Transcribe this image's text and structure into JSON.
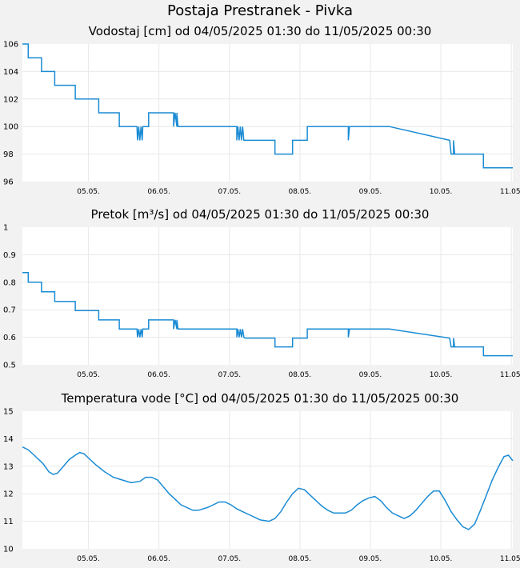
{
  "page_title": "Postaja Prestranek - Pivka",
  "colors": {
    "series": "#1a8bd4",
    "plot_bg": "#ffffff",
    "page_bg": "#f2f2f2",
    "grid": "#e8e8e8"
  },
  "chart_data": [
    {
      "type": "line",
      "title": "Vodostaj [cm] od 04/05/2025 01:30 do 11/05/2025 00:30",
      "xlabel": "",
      "ylabel": "",
      "x_range": [
        0,
        167
      ],
      "ylim": [
        96,
        106
      ],
      "yticks": [
        "96",
        "98",
        "100",
        "102",
        "104",
        "106"
      ],
      "xticks": [
        {
          "hour": 22.5,
          "label": "05.05."
        },
        {
          "hour": 46.5,
          "label": "06.05."
        },
        {
          "hour": 70.5,
          "label": "07.05."
        },
        {
          "hour": 94.5,
          "label": "08.05."
        },
        {
          "hour": 118.5,
          "label": "09.05."
        },
        {
          "hour": 142.5,
          "label": "10.05."
        },
        {
          "hour": 166.5,
          "label": "11.05."
        }
      ],
      "grid": true,
      "series": [
        {
          "x": [
            0,
            2,
            2,
            6.5,
            6.5,
            11,
            11,
            18,
            18,
            26,
            26,
            33,
            33,
            39,
            39.2,
            39.6,
            40,
            40.4,
            40.8,
            41,
            43,
            43,
            51.5,
            51.5,
            52,
            52.6,
            52.6,
            53,
            53.2,
            73,
            73,
            73.4,
            73.8,
            74.2,
            74.6,
            75,
            75.4,
            75.8,
            76.2,
            76.6,
            86,
            86,
            92,
            92,
            97,
            97,
            111,
            111,
            111.4,
            111.8,
            111.8,
            125,
            125,
            145.5,
            145.5,
            146,
            146.8,
            146.8,
            147.2,
            147.4,
            147.6,
            157,
            157,
            167
          ],
          "y": [
            106,
            106,
            105,
            105,
            104,
            104,
            103,
            103,
            102,
            102,
            101,
            101,
            100,
            100,
            99,
            100,
            99,
            100,
            99,
            100,
            100,
            101,
            101,
            100,
            101,
            100,
            101,
            100,
            100,
            100,
            99,
            100,
            99,
            100,
            99,
            100,
            99,
            99,
            99,
            99,
            99,
            98,
            98,
            99,
            99,
            100,
            100,
            99,
            100,
            100,
            100,
            100,
            100,
            99,
            99,
            98,
            98,
            99,
            98,
            98,
            98,
            98,
            97,
            97
          ]
        }
      ]
    },
    {
      "type": "line",
      "title": "Pretok [m³/s] od 04/05/2025 01:30 do 11/05/2025 00:30",
      "xlabel": "",
      "ylabel": "",
      "x_range": [
        0,
        167
      ],
      "ylim": [
        0.5,
        1
      ],
      "yticks": [
        "0.5",
        "0.6",
        "0.7",
        "0.8",
        "0.9",
        "1"
      ],
      "xticks": [
        {
          "hour": 22.5,
          "label": "05.05."
        },
        {
          "hour": 46.5,
          "label": "06.05."
        },
        {
          "hour": 70.5,
          "label": "07.05."
        },
        {
          "hour": 94.5,
          "label": "08.05."
        },
        {
          "hour": 118.5,
          "label": "09.05."
        },
        {
          "hour": 142.5,
          "label": "10.05."
        },
        {
          "hour": 166.5,
          "label": "11.05."
        }
      ],
      "grid": true,
      "series": [
        {
          "x": [
            0,
            2,
            2,
            6.5,
            6.5,
            11,
            11,
            18,
            18,
            26,
            26,
            33,
            33,
            39,
            39.2,
            39.6,
            40,
            40.4,
            40.8,
            41,
            43,
            43,
            51.5,
            51.5,
            52,
            52.6,
            52.6,
            53,
            53.2,
            73,
            73,
            73.4,
            73.8,
            74.2,
            74.6,
            75,
            75.4,
            75.8,
            76.2,
            76.6,
            86,
            86,
            92,
            92,
            97,
            97,
            111,
            111,
            111.4,
            111.8,
            111.8,
            125,
            125,
            145.5,
            145.5,
            146,
            146.8,
            146.8,
            147.2,
            147.4,
            147.6,
            157,
            157,
            167
          ],
          "y": [
            0.835,
            0.835,
            0.8,
            0.8,
            0.765,
            0.765,
            0.73,
            0.73,
            0.697,
            0.697,
            0.663,
            0.663,
            0.63,
            0.63,
            0.6,
            0.63,
            0.6,
            0.63,
            0.6,
            0.63,
            0.63,
            0.663,
            0.663,
            0.63,
            0.663,
            0.63,
            0.663,
            0.63,
            0.63,
            0.63,
            0.6,
            0.63,
            0.6,
            0.63,
            0.6,
            0.63,
            0.6,
            0.597,
            0.597,
            0.597,
            0.597,
            0.565,
            0.565,
            0.597,
            0.597,
            0.63,
            0.63,
            0.6,
            0.63,
            0.63,
            0.63,
            0.63,
            0.63,
            0.597,
            0.597,
            0.565,
            0.565,
            0.597,
            0.565,
            0.565,
            0.565,
            0.565,
            0.533,
            0.533
          ]
        }
      ]
    },
    {
      "type": "line",
      "title": "Temperatura vode [°C] od 04/05/2025 01:30 do 11/05/2025 00:30",
      "xlabel": "",
      "ylabel": "",
      "x_range": [
        0,
        167
      ],
      "ylim": [
        10,
        15
      ],
      "yticks": [
        "10",
        "11",
        "12",
        "13",
        "14",
        "15"
      ],
      "xticks": [
        {
          "hour": 22.5,
          "label": "05.05."
        },
        {
          "hour": 46.5,
          "label": "06.05."
        },
        {
          "hour": 70.5,
          "label": "07.05."
        },
        {
          "hour": 94.5,
          "label": "08.05."
        },
        {
          "hour": 118.5,
          "label": "09.05."
        },
        {
          "hour": 142.5,
          "label": "10.05."
        },
        {
          "hour": 166.5,
          "label": "11.05."
        }
      ],
      "grid": true,
      "series": [
        {
          "x": [
            0,
            2,
            4,
            7,
            9,
            10.5,
            12,
            14,
            16,
            18,
            19.5,
            21,
            22.5,
            25,
            28,
            31,
            34,
            37,
            40,
            42,
            44,
            46,
            48,
            50,
            52,
            54,
            56,
            58,
            60,
            63,
            65,
            67,
            69,
            71,
            73,
            75,
            77,
            79,
            81,
            84,
            86,
            88,
            90,
            92,
            94,
            96,
            98,
            100,
            102,
            104,
            106,
            108,
            110,
            112,
            114,
            116,
            118,
            120,
            122,
            124,
            126,
            128,
            130,
            132,
            134,
            136,
            138,
            140,
            142,
            144,
            146,
            148,
            150,
            152,
            154,
            156,
            158,
            160,
            162,
            164,
            165.5,
            167
          ],
          "y": [
            13.7,
            13.6,
            13.4,
            13.1,
            12.8,
            12.7,
            12.75,
            13.0,
            13.25,
            13.4,
            13.5,
            13.45,
            13.3,
            13.05,
            12.8,
            12.6,
            12.5,
            12.4,
            12.45,
            12.6,
            12.6,
            12.5,
            12.25,
            12.0,
            11.8,
            11.6,
            11.5,
            11.4,
            11.4,
            11.5,
            11.6,
            11.7,
            11.7,
            11.6,
            11.45,
            11.35,
            11.25,
            11.15,
            11.05,
            11.0,
            11.1,
            11.35,
            11.7,
            12.0,
            12.2,
            12.15,
            11.95,
            11.75,
            11.55,
            11.4,
            11.3,
            11.3,
            11.3,
            11.4,
            11.6,
            11.75,
            11.85,
            11.9,
            11.75,
            11.5,
            11.3,
            11.2,
            11.1,
            11.2,
            11.4,
            11.65,
            11.9,
            12.1,
            12.1,
            11.75,
            11.35,
            11.05,
            10.8,
            10.7,
            10.9,
            11.4,
            11.95,
            12.5,
            12.95,
            13.35,
            13.4,
            13.2
          ]
        }
      ]
    }
  ]
}
